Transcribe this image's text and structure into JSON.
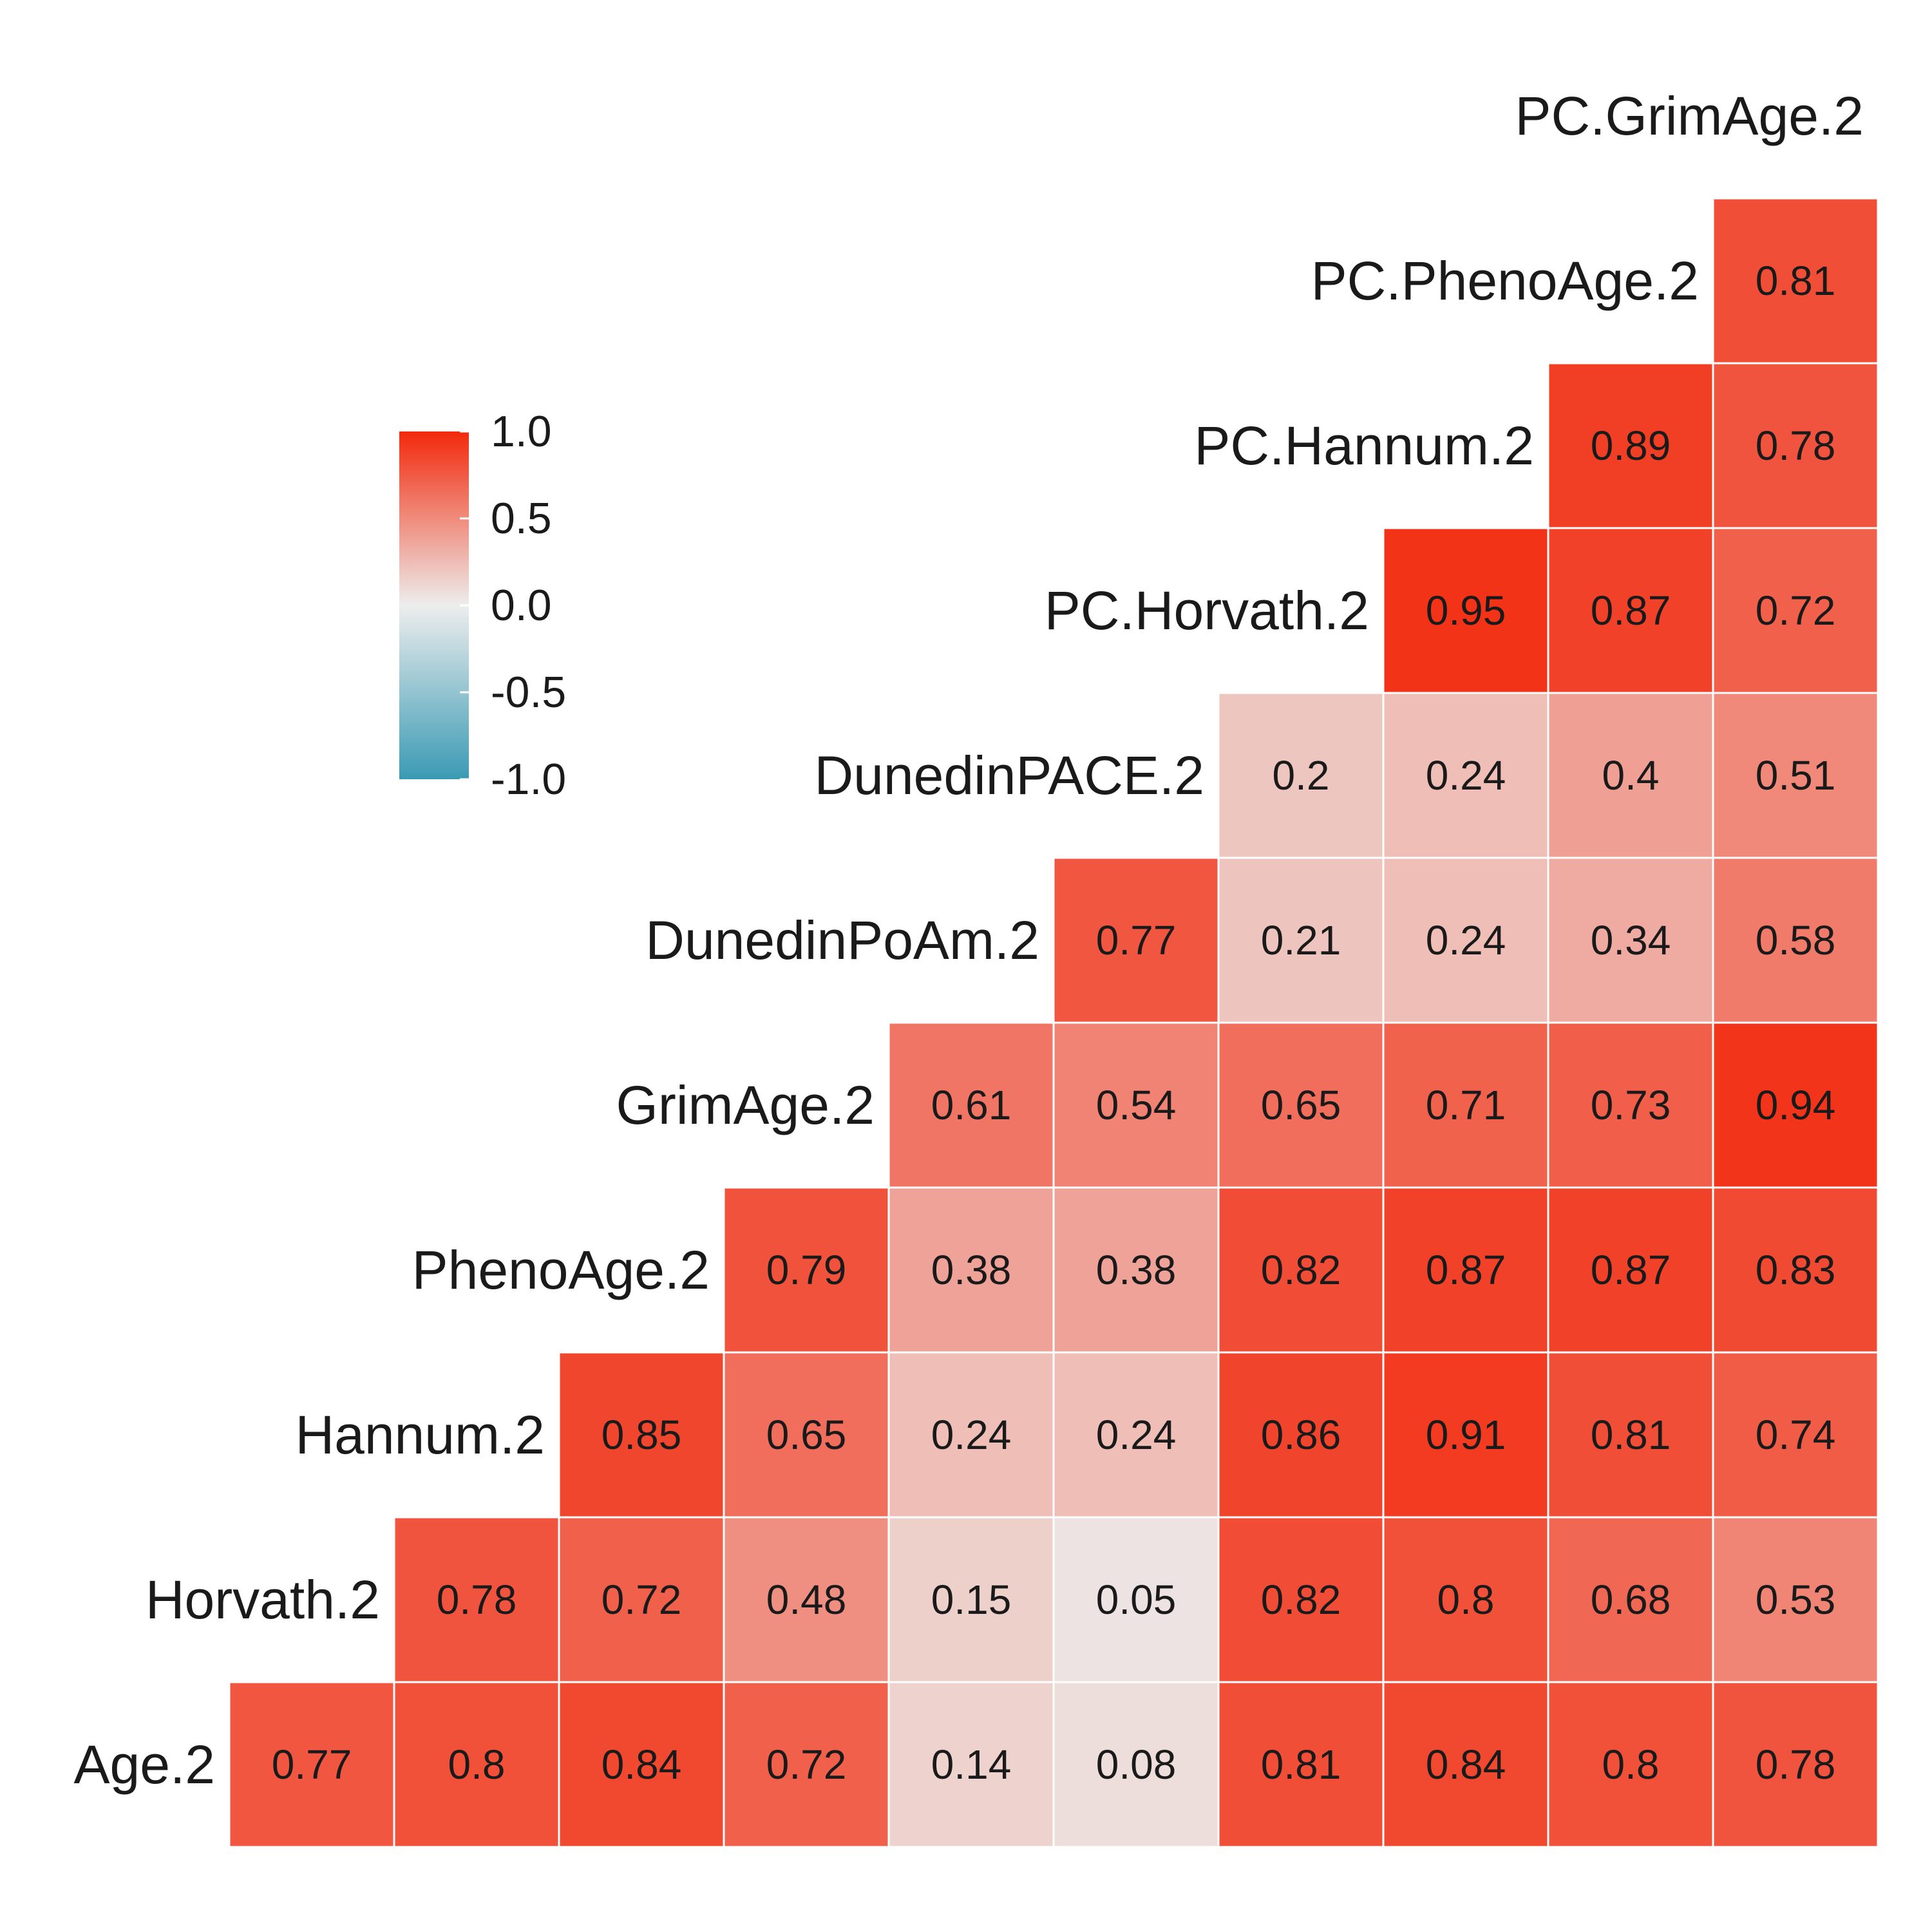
{
  "chart_data": {
    "type": "heatmap",
    "title": "",
    "variables": [
      "Age.2",
      "Horvath.2",
      "Hannum.2",
      "PhenoAge.2",
      "GrimAge.2",
      "DunedinPoAm.2",
      "DunedinPACE.2",
      "PC.Horvath.2",
      "PC.Hannum.2",
      "PC.PhenoAge.2",
      "PC.GrimAge.2"
    ],
    "rows": [
      {
        "label": "Age.2",
        "values": [
          0.77,
          0.8,
          0.84,
          0.72,
          0.14,
          0.08,
          0.81,
          0.84,
          0.8,
          0.78
        ]
      },
      {
        "label": "Horvath.2",
        "values": [
          0.78,
          0.72,
          0.48,
          0.15,
          0.05,
          0.82,
          0.8,
          0.68,
          0.53
        ]
      },
      {
        "label": "Hannum.2",
        "values": [
          0.85,
          0.65,
          0.24,
          0.24,
          0.86,
          0.91,
          0.81,
          0.74
        ]
      },
      {
        "label": "PhenoAge.2",
        "values": [
          0.79,
          0.38,
          0.38,
          0.82,
          0.87,
          0.87,
          0.83
        ]
      },
      {
        "label": "GrimAge.2",
        "values": [
          0.61,
          0.54,
          0.65,
          0.71,
          0.73,
          0.94
        ]
      },
      {
        "label": "DunedinPoAm.2",
        "values": [
          0.77,
          0.21,
          0.24,
          0.34,
          0.58
        ]
      },
      {
        "label": "DunedinPACE.2",
        "values": [
          0.2,
          0.24,
          0.4,
          0.51
        ]
      },
      {
        "label": "PC.Horvath.2",
        "values": [
          0.95,
          0.87,
          0.72
        ]
      },
      {
        "label": "PC.Hannum.2",
        "values": [
          0.89,
          0.78
        ]
      },
      {
        "label": "PC.PhenoAge.2",
        "values": [
          0.81
        ]
      },
      {
        "label": "PC.GrimAge.2",
        "values": []
      }
    ],
    "legend": {
      "position": "upper-left",
      "range": [
        -1.0,
        1.0
      ],
      "ticks": [
        "1.0",
        "0.5",
        "0.0",
        "-0.5",
        "-1.0"
      ],
      "tick_values": [
        1.0,
        0.5,
        0.0,
        -0.5,
        -1.0
      ]
    },
    "colors": {
      "low": "#3a9ab3",
      "mid": "#ededed",
      "high": "#f2290c",
      "cell_border": "#ffffff",
      "text": "#1a1a1a"
    }
  }
}
